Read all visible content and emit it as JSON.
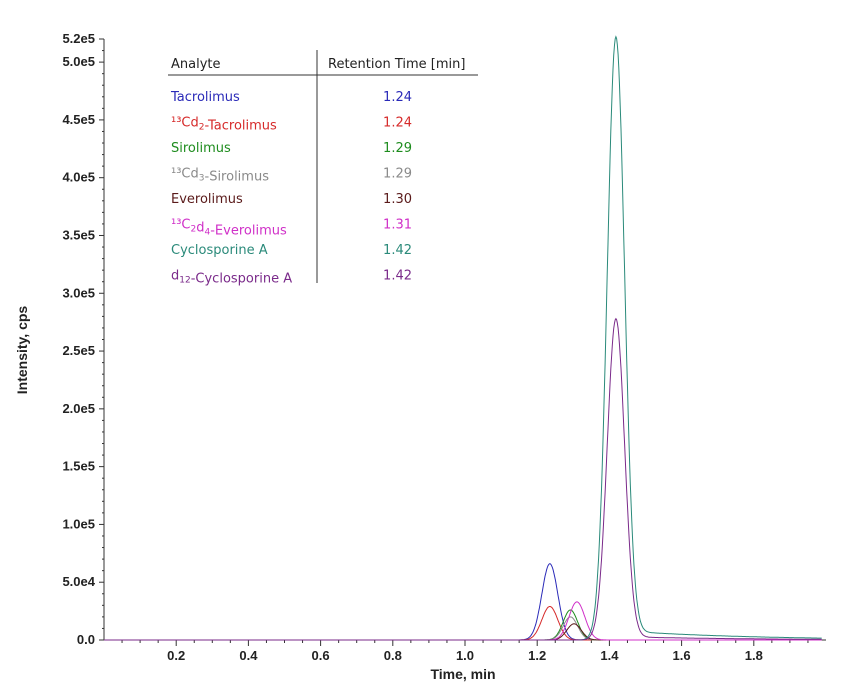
{
  "chart_data": {
    "type": "line",
    "xlabel": "Time, min",
    "ylabel": "Intensity, cps",
    "xlim": [
      0.0,
      2.0
    ],
    "ylim": [
      0,
      520000
    ],
    "x_ticks": [
      0.2,
      0.4,
      0.6,
      0.8,
      1.0,
      1.2,
      1.4,
      1.6,
      1.8
    ],
    "x_tick_labels": [
      "0.2",
      "0.4",
      "0.6",
      "0.8",
      "1.0",
      "1.2",
      "1.4",
      "1.6",
      "1.8"
    ],
    "y_ticks": [
      0,
      50000,
      100000,
      150000,
      200000,
      250000,
      300000,
      350000,
      400000,
      450000,
      500000,
      520000
    ],
    "y_tick_labels": [
      "0.0",
      "5.0e4",
      "1.0e5",
      "1.5e5",
      "2.0e5",
      "2.5e5",
      "3.0e5",
      "3.5e5",
      "4.0e5",
      "4.5e5",
      "5.0e5",
      "5.2e5"
    ],
    "grid": false,
    "table": {
      "header_analyte": "Analyte",
      "header_rt": "Retention Time [min]"
    },
    "series": [
      {
        "name_parts": [
          {
            "t": "Tacrolimus"
          }
        ],
        "retention_time": "1.24",
        "color": "#2a2ab8",
        "peak_x": 1.235,
        "peak_y": 66000,
        "width": 0.022,
        "tail": 0
      },
      {
        "name_parts": [
          {
            "t": "¹³Cd"
          },
          {
            "t": "2",
            "sub": true
          },
          {
            "t": "-Tacrolimus"
          }
        ],
        "retention_time": "1.24",
        "color": "#d62a2a",
        "peak_x": 1.235,
        "peak_y": 29000,
        "width": 0.022,
        "tail": 0
      },
      {
        "name_parts": [
          {
            "t": "Sirolimus"
          }
        ],
        "retention_time": "1.29",
        "color": "#1e8c1e",
        "peak_x": 1.292,
        "peak_y": 26000,
        "width": 0.02,
        "tail": 0
      },
      {
        "name_parts": [
          {
            "t": "¹³Cd"
          },
          {
            "t": "3",
            "sub": true
          },
          {
            "t": "-Sirolimus"
          }
        ],
        "retention_time": "1.29",
        "color": "#8a8a8a",
        "peak_x": 1.292,
        "peak_y": 20000,
        "width": 0.02,
        "tail": 0
      },
      {
        "name_parts": [
          {
            "t": "Everolimus"
          }
        ],
        "retention_time": "1.30",
        "color": "#5a1a1a",
        "peak_x": 1.302,
        "peak_y": 14000,
        "width": 0.02,
        "tail": 0
      },
      {
        "name_parts": [
          {
            "t": "¹³C"
          },
          {
            "t": "2",
            "sub": true
          },
          {
            "t": "d"
          },
          {
            "t": "4",
            "sub": true
          },
          {
            "t": "-Everolimus"
          }
        ],
        "retention_time": "1.31",
        "color": "#d030c8",
        "peak_x": 1.31,
        "peak_y": 33000,
        "width": 0.022,
        "tail": 0
      },
      {
        "name_parts": [
          {
            "t": "Cyclosporine A"
          }
        ],
        "retention_time": "1.42",
        "color": "#2a8a7a",
        "peak_x": 1.418,
        "peak_y": 522000,
        "width": 0.024,
        "tail": 7000
      },
      {
        "name_parts": [
          {
            "t": "d"
          },
          {
            "t": "12",
            "sub": true
          },
          {
            "t": "-Cyclosporine A"
          }
        ],
        "retention_time": "1.42",
        "color": "#7a2a8a",
        "peak_x": 1.418,
        "peak_y": 278000,
        "width": 0.024,
        "tail": 2500
      }
    ]
  }
}
